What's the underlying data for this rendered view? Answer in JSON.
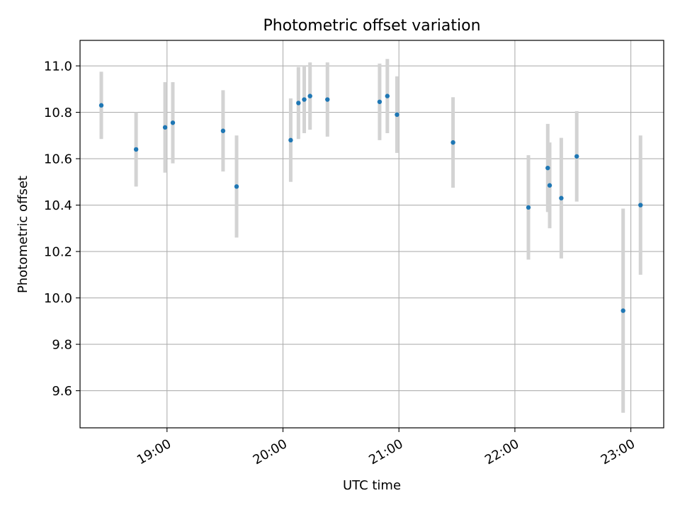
{
  "chart_data": {
    "type": "scatter",
    "title": "Photometric offset variation",
    "xlabel": "UTC time",
    "ylabel": "Photometric offset",
    "x_tick_labels": [
      "19:00",
      "20:00",
      "21:00",
      "22:00",
      "23:00"
    ],
    "y_tick_labels": [
      "9.6",
      "9.8",
      "10.0",
      "10.2",
      "10.4",
      "10.6",
      "10.8",
      "11.0"
    ],
    "xlim": [
      "18:15",
      "23:17"
    ],
    "ylim": [
      9.44,
      11.11
    ],
    "grid": true,
    "point_color": "#1f77b4",
    "errorbar_color": "#d3d3d3",
    "points": [
      {
        "x": "18:26",
        "y": 10.83,
        "err": 0.145
      },
      {
        "x": "18:44",
        "y": 10.64,
        "err": 0.16
      },
      {
        "x": "18:59",
        "y": 10.735,
        "err": 0.195
      },
      {
        "x": "19:03",
        "y": 10.755,
        "err": 0.175
      },
      {
        "x": "19:29",
        "y": 10.72,
        "err": 0.175
      },
      {
        "x": "19:36",
        "y": 10.48,
        "err": 0.22
      },
      {
        "x": "20:04",
        "y": 10.68,
        "err": 0.18
      },
      {
        "x": "20:08",
        "y": 10.84,
        "err": 0.155
      },
      {
        "x": "20:11",
        "y": 10.855,
        "err": 0.145
      },
      {
        "x": "20:14",
        "y": 10.87,
        "err": 0.145
      },
      {
        "x": "20:23",
        "y": 10.855,
        "err": 0.16
      },
      {
        "x": "20:50",
        "y": 10.845,
        "err": 0.165
      },
      {
        "x": "20:54",
        "y": 10.87,
        "err": 0.16
      },
      {
        "x": "20:59",
        "y": 10.79,
        "err": 0.165
      },
      {
        "x": "21:28",
        "y": 10.67,
        "err": 0.195
      },
      {
        "x": "22:07",
        "y": 10.39,
        "err": 0.225
      },
      {
        "x": "22:17",
        "y": 10.56,
        "err": 0.19
      },
      {
        "x": "22:18",
        "y": 10.485,
        "err": 0.185
      },
      {
        "x": "22:24",
        "y": 10.43,
        "err": 0.26
      },
      {
        "x": "22:32",
        "y": 10.61,
        "err": 0.195
      },
      {
        "x": "22:56",
        "y": 9.945,
        "err": 0.44
      },
      {
        "x": "23:05",
        "y": 10.4,
        "err": 0.3
      }
    ]
  }
}
